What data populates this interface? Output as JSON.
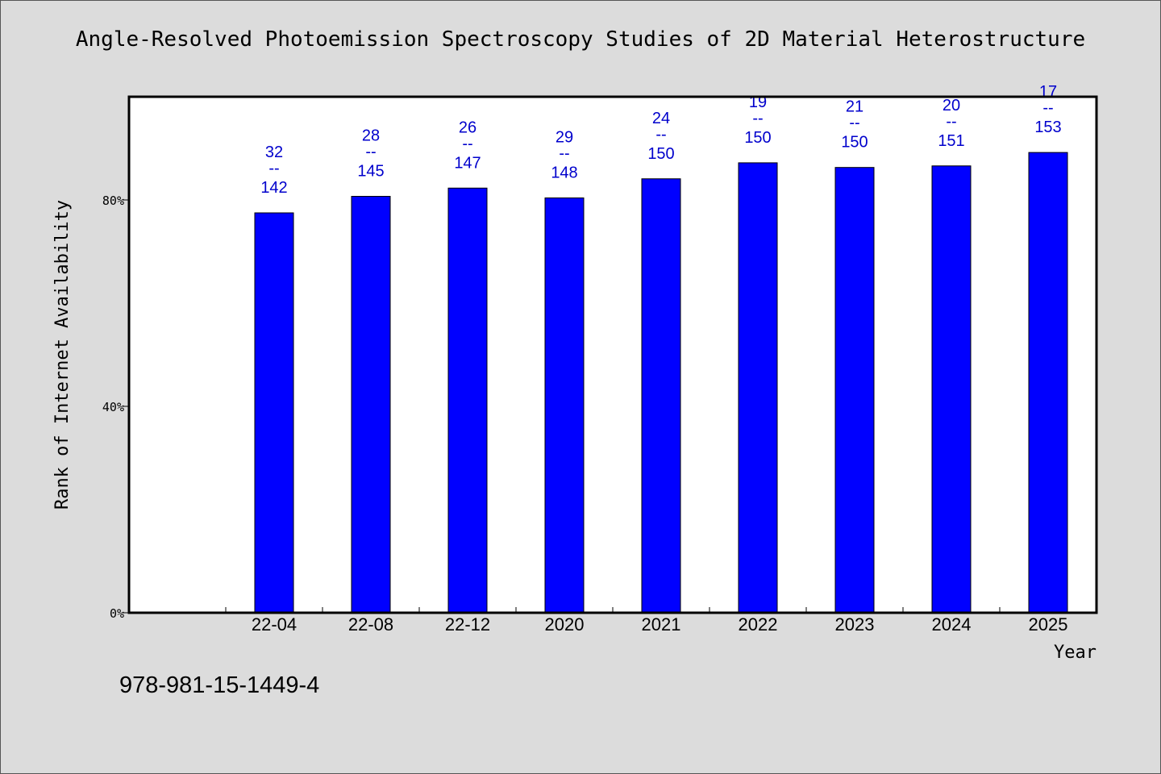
{
  "title": "Angle-Resolved Photoemission Spectroscopy Studies of 2D Material Heterostructure",
  "footer_text": "978-981-15-1449-4",
  "chart_data": {
    "type": "bar",
    "title": "Angle-Resolved Photoemission Spectroscopy Studies of 2D Material Heterostructure",
    "xlabel": "Year",
    "ylabel": "Rank of Internet Availability",
    "categories": [
      "",
      "22-04",
      "22-08",
      "22-12",
      "2020",
      "2021",
      "2022",
      "2023",
      "2024",
      "2025"
    ],
    "values": [
      null,
      77.5,
      80.7,
      82.3,
      80.4,
      84.1,
      87.2,
      86.3,
      86.6,
      89.2
    ],
    "data_labels": [
      null,
      {
        "top": "32",
        "mid": "--",
        "bottom": "142"
      },
      {
        "top": "28",
        "mid": "--",
        "bottom": "145"
      },
      {
        "top": "26",
        "mid": "--",
        "bottom": "147"
      },
      {
        "top": "29",
        "mid": "--",
        "bottom": "148"
      },
      {
        "top": "24",
        "mid": "--",
        "bottom": "150"
      },
      {
        "top": "19",
        "mid": "--",
        "bottom": "150"
      },
      {
        "top": "21",
        "mid": "--",
        "bottom": "150"
      },
      {
        "top": "20",
        "mid": "--",
        "bottom": "151"
      },
      {
        "top": "17",
        "mid": "--",
        "bottom": "153"
      }
    ],
    "yticks": [
      0,
      40,
      80
    ],
    "ytick_labels": [
      "0%",
      "40%",
      "80%"
    ],
    "ylim": [
      0,
      100
    ],
    "bar_color": "#0000ff",
    "label_color": "#0000cc",
    "grid": false,
    "legend": "none"
  }
}
